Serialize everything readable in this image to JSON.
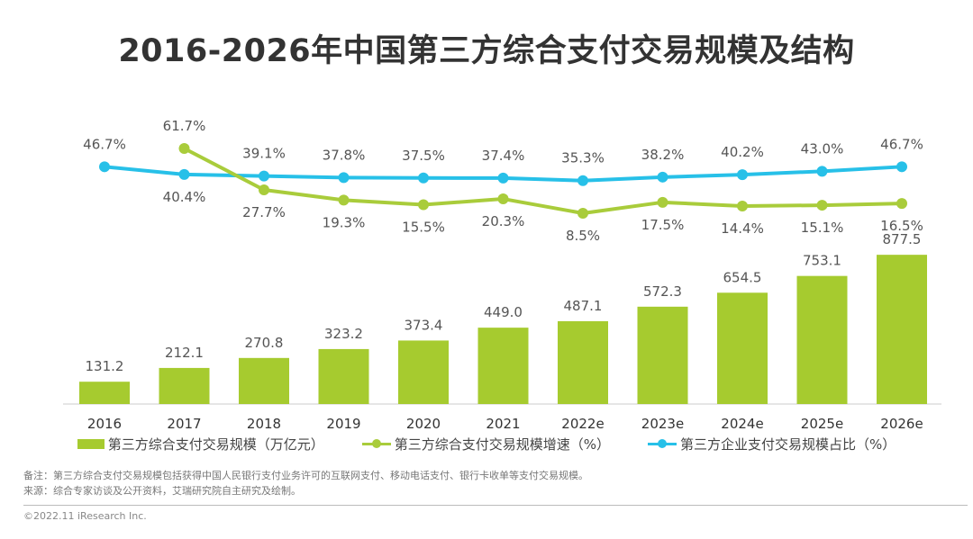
{
  "title": "2016-2026年中国第三方综合支付交易规模及结构",
  "chart_data": {
    "type": "bar+line",
    "title": "2016-2026年中国第三方综合支付交易规模及结构",
    "categories": [
      "2016",
      "2017",
      "2018",
      "2019",
      "2020",
      "2021",
      "2022e",
      "2023e",
      "2024e",
      "2025e",
      "2026e"
    ],
    "series": [
      {
        "name": "第三方综合支付交易规模（万亿元）",
        "type": "bar",
        "color": "#a6cb2f",
        "values": [
          131.2,
          212.1,
          270.8,
          323.2,
          373.4,
          449.0,
          487.1,
          572.3,
          654.5,
          753.1,
          877.5
        ],
        "labels": [
          "131.2",
          "212.1",
          "270.8",
          "323.2",
          "373.4",
          "449.0",
          "487.1",
          "572.3",
          "654.5",
          "753.1",
          "877.5"
        ]
      },
      {
        "name": "第三方综合支付交易规模增速（%）",
        "type": "line",
        "color": "#a9cc3b",
        "values": [
          null,
          61.7,
          27.7,
          19.3,
          15.5,
          20.3,
          8.5,
          17.5,
          14.4,
          15.1,
          16.5
        ],
        "labels": [
          "",
          "61.7%",
          "27.7%",
          "19.3%",
          "15.5%",
          "20.3%",
          "8.5%",
          "17.5%",
          "14.4%",
          "15.1%",
          "16.5%"
        ]
      },
      {
        "name": "第三方企业支付交易规模占比（%）",
        "type": "line",
        "color": "#27c0e8",
        "values": [
          46.7,
          40.4,
          39.1,
          37.8,
          37.5,
          37.4,
          35.3,
          38.2,
          40.2,
          43.0,
          46.7
        ],
        "labels": [
          "46.7%",
          "40.4%",
          "39.1%",
          "37.8%",
          "37.5%",
          "37.4%",
          "35.3%",
          "38.2%",
          "40.2%",
          "43.0%",
          "46.7%"
        ]
      }
    ],
    "legend": "bottom",
    "grid": false
  },
  "notes": {
    "remark": "备注：第三方综合支付交易规模包括获得中国人民银行支付业务许可的互联网支付、移动电话支付、银行卡收单等支付交易规模。",
    "source": "来源：综合专家访谈及公开资料，艾瑞研究院自主研究及绘制。"
  },
  "copyright": "©2022.11 iResearch Inc."
}
